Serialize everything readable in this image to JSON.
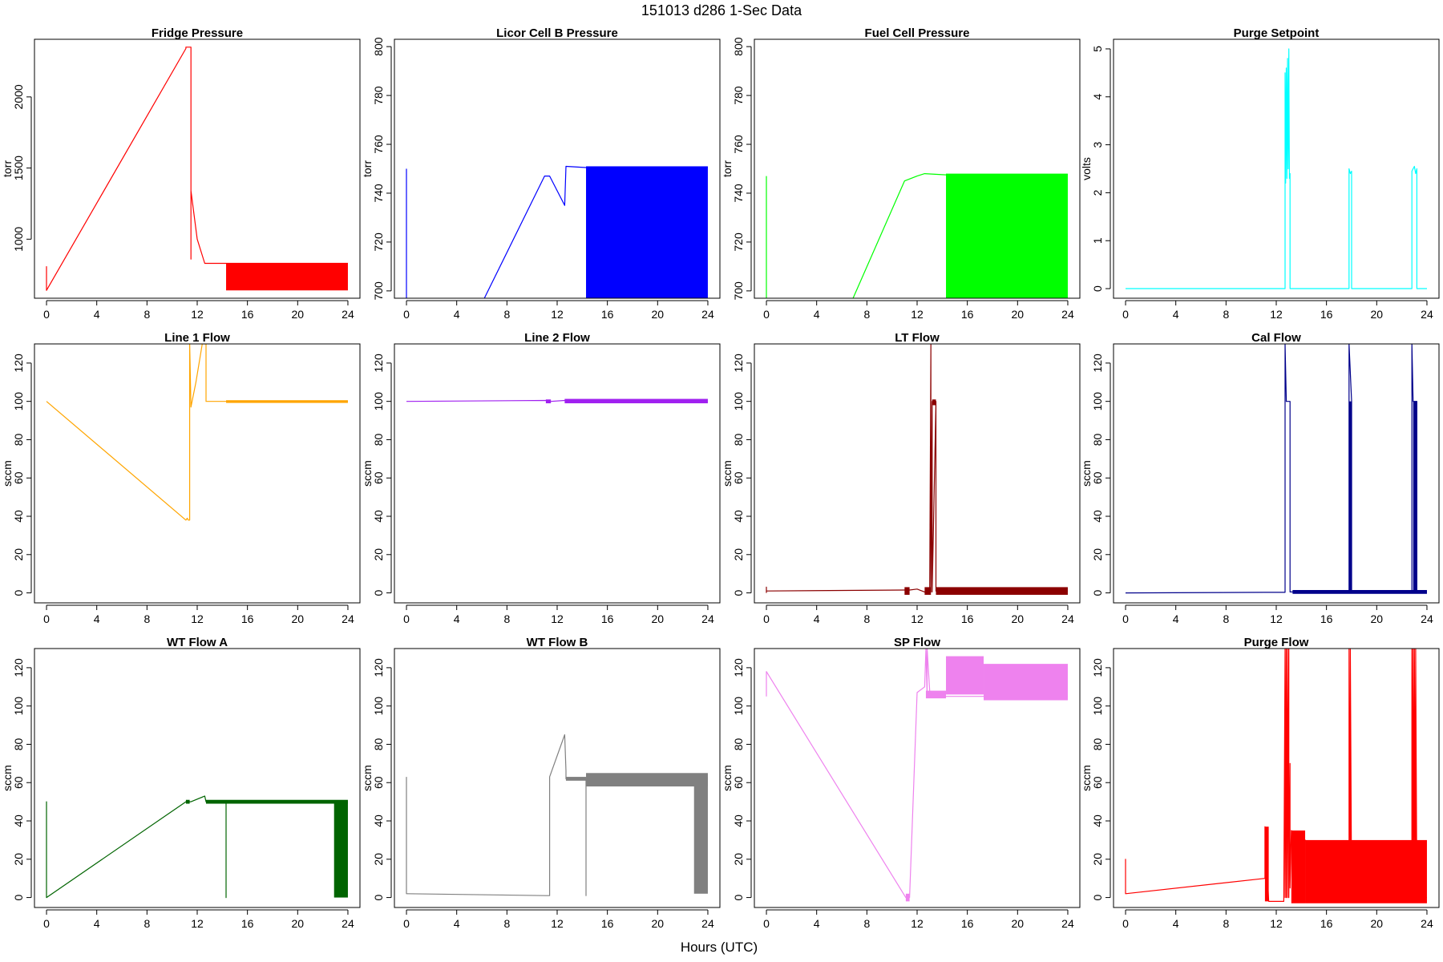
{
  "figure": {
    "title": "151013   d286   1-Sec Data",
    "xlabel": "Hours (UTC)"
  },
  "chart_data": [
    {
      "type": "line",
      "title": "Fridge Pressure",
      "ylabel": "torr",
      "color": "#ff0000",
      "xlim": [
        -0.96,
        24.96
      ],
      "ylim": [
        585,
        2405
      ],
      "xticks": [
        0,
        4,
        8,
        12,
        16,
        20,
        24
      ],
      "yticks": [
        1000,
        1500,
        2000
      ],
      "series": [
        {
          "x": [
            0,
            0,
            11.1,
            11.1,
            11.5,
            11.5,
            11.5,
            11.5,
            12.0,
            12.6,
            14.3
          ],
          "y": [
            810,
            640,
            2340,
            2350,
            2350,
            860,
            1340,
            1340,
            1000,
            830,
            830
          ]
        },
        {
          "x": [
            14.3,
            24
          ],
          "y": [
            830,
            830
          ]
        }
      ],
      "bands": [
        {
          "x0": 14.3,
          "x1": 24,
          "y0": 640,
          "y1": 830
        }
      ]
    },
    {
      "type": "line",
      "title": "Licor Cell B Pressure",
      "ylabel": "torr",
      "color": "#0000ff",
      "xlim": [
        -0.96,
        24.96
      ],
      "ylim": [
        697,
        803
      ],
      "xticks": [
        0,
        4,
        8,
        12,
        16,
        20,
        24
      ],
      "yticks": [
        700,
        720,
        740,
        760,
        780,
        800
      ],
      "series": [
        {
          "x": [
            0,
            0
          ],
          "y": [
            697,
            750
          ]
        },
        {
          "x": [
            6.2,
            11.0,
            11.4,
            12.6,
            12.7,
            12.7,
            14.3,
            24
          ],
          "y": [
            697,
            747,
            747,
            735,
            751,
            751,
            750.5,
            750.5
          ]
        }
      ],
      "bands": [
        {
          "x0": 14.3,
          "x1": 24,
          "y0": 697,
          "y1": 751
        }
      ]
    },
    {
      "type": "line",
      "title": "Fuel Cell Pressure",
      "ylabel": "torr",
      "color": "#00ff00",
      "xlim": [
        -0.96,
        24.96
      ],
      "ylim": [
        697,
        803
      ],
      "xticks": [
        0,
        4,
        8,
        12,
        16,
        20,
        24
      ],
      "yticks": [
        700,
        720,
        740,
        760,
        780,
        800
      ],
      "series": [
        {
          "x": [
            0,
            0
          ],
          "y": [
            697,
            747
          ]
        },
        {
          "x": [
            6.9,
            11.0,
            12.0,
            12.6,
            14.3,
            24
          ],
          "y": [
            697,
            745,
            747,
            748,
            747.5,
            747.5
          ]
        }
      ],
      "bands": [
        {
          "x0": 14.3,
          "x1": 24,
          "y0": 697,
          "y1": 748
        }
      ]
    },
    {
      "type": "line",
      "title": "Purge Setpoint",
      "ylabel": "volts",
      "color": "#00ffff",
      "xlim": [
        -0.96,
        24.96
      ],
      "ylim": [
        -0.2,
        5.2
      ],
      "xticks": [
        0,
        4,
        8,
        12,
        16,
        20,
        24
      ],
      "yticks": [
        0,
        1,
        2,
        3,
        4,
        5
      ],
      "series": [
        {
          "x": [
            0,
            12.7,
            12.7,
            12.75,
            12.8,
            12.85,
            12.9,
            12.95,
            13.0,
            13.05,
            13.1,
            13.1,
            17.8,
            17.8,
            17.9,
            18.0,
            18.0,
            22.8,
            22.8,
            22.9,
            23.0,
            23.1,
            23.2,
            23.2,
            24
          ],
          "y": [
            0,
            0,
            4.5,
            2.2,
            4.6,
            2.3,
            4.8,
            2.5,
            5.0,
            2.3,
            2.4,
            0,
            0,
            2.5,
            2.4,
            2.45,
            0,
            0,
            2.45,
            2.5,
            2.55,
            2.4,
            2.5,
            0,
            0
          ]
        }
      ],
      "bands": []
    },
    {
      "type": "line",
      "title": "Line 1 Flow",
      "ylabel": "sccm",
      "color": "#ffa500",
      "xlim": [
        -0.96,
        24.96
      ],
      "ylim": [
        -5.2,
        130
      ],
      "xticks": [
        0,
        4,
        8,
        12,
        16,
        20,
        24
      ],
      "yticks": [
        0,
        20,
        40,
        60,
        80,
        100,
        120
      ],
      "series": [
        {
          "x": [
            0,
            11.1,
            11.2,
            11.3,
            11.4,
            11.4,
            11.5,
            11.9,
            12.4,
            12.6,
            12.7,
            12.7,
            24
          ],
          "y": [
            100,
            38,
            39,
            38,
            38,
            130,
            97,
            110,
            130,
            130,
            130,
            100,
            100
          ]
        }
      ],
      "bands": [
        {
          "x0": 14.3,
          "x1": 24,
          "y0": 99.2,
          "y1": 100.6
        }
      ]
    },
    {
      "type": "line",
      "title": "Line 2 Flow",
      "ylabel": "sccm",
      "color": "#a020f0",
      "xlim": [
        -0.96,
        24.96
      ],
      "ylim": [
        -5.2,
        130
      ],
      "xticks": [
        0,
        4,
        8,
        12,
        16,
        20,
        24
      ],
      "yticks": [
        0,
        20,
        40,
        60,
        80,
        100,
        120
      ],
      "series": [
        {
          "x": [
            0,
            11.1,
            11.5,
            12.6,
            14.3,
            24
          ],
          "y": [
            100,
            100.5,
            100,
            100.5,
            100,
            100
          ]
        }
      ],
      "bands": [
        {
          "x0": 11.1,
          "x1": 11.5,
          "y0": 99,
          "y1": 101
        },
        {
          "x0": 12.6,
          "x1": 24,
          "y0": 99,
          "y1": 101.3
        }
      ]
    },
    {
      "type": "line",
      "title": "LT Flow",
      "ylabel": "sccm",
      "color": "#8b0000",
      "xlim": [
        -0.96,
        24.96
      ],
      "ylim": [
        -5.2,
        130
      ],
      "xticks": [
        0,
        4,
        8,
        12,
        16,
        20,
        24
      ],
      "yticks": [
        0,
        20,
        40,
        60,
        80,
        100,
        120
      ],
      "series": [
        {
          "x": [
            0,
            0,
            0,
            11.0,
            11.4,
            12.0,
            12.6,
            13.0,
            13.1,
            13.1,
            13.2,
            13.2,
            13.5,
            13.5,
            24
          ],
          "y": [
            0,
            3,
            1,
            1.5,
            1.5,
            2,
            0.5,
            0.5,
            130,
            0.5,
            100,
            0.5,
            100,
            1,
            1
          ]
        }
      ],
      "bands": [
        {
          "x0": 11.0,
          "x1": 11.4,
          "y0": -1,
          "y1": 3
        },
        {
          "x0": 12.6,
          "x1": 13.1,
          "y0": -1,
          "y1": 3
        },
        {
          "x0": 13.2,
          "x1": 13.5,
          "y0": 98,
          "y1": 101
        },
        {
          "x0": 13.5,
          "x1": 24,
          "y0": -1,
          "y1": 3
        }
      ]
    },
    {
      "type": "line",
      "title": "Cal Flow",
      "ylabel": "sccm",
      "color": "#00008b",
      "xlim": [
        -0.96,
        24.96
      ],
      "ylim": [
        -5.2,
        130
      ],
      "xticks": [
        0,
        4,
        8,
        12,
        16,
        20,
        24
      ],
      "yticks": [
        0,
        20,
        40,
        60,
        80,
        100,
        120
      ],
      "series": [
        {
          "x": [
            0,
            11.1,
            12.7,
            12.7,
            12.8,
            12.8,
            13.1,
            13.1,
            17.8,
            17.8,
            18.0,
            18.0,
            22.8,
            22.8,
            22.9,
            22.9,
            23.2,
            23.2,
            24
          ],
          "y": [
            0,
            0.3,
            0.3,
            130,
            101,
            100,
            100,
            0.5,
            0.5,
            130,
            100,
            0.5,
            0.5,
            130,
            100,
            100,
            100,
            0.5,
            0.5
          ]
        }
      ],
      "bands": [
        {
          "x0": 13.3,
          "x1": 24,
          "y0": -0.5,
          "y1": 1.5
        },
        {
          "x0": 17.8,
          "x1": 18.0,
          "y0": 0,
          "y1": 100
        },
        {
          "x0": 22.9,
          "x1": 23.2,
          "y0": 0,
          "y1": 100
        }
      ]
    },
    {
      "type": "line",
      "title": "WT Flow A",
      "ylabel": "sccm",
      "color": "#006400",
      "xlim": [
        -0.96,
        24.96
      ],
      "ylim": [
        -5.2,
        130
      ],
      "xticks": [
        0,
        4,
        8,
        12,
        16,
        20,
        24
      ],
      "yticks": [
        0,
        20,
        40,
        60,
        80,
        100,
        120
      ],
      "series": [
        {
          "x": [
            0,
            0,
            0,
            11.1,
            11.5,
            12.6,
            12.7,
            14.3,
            14.3,
            14.3,
            24
          ],
          "y": [
            0,
            50,
            0,
            50,
            50,
            53,
            50,
            50,
            0,
            50,
            50
          ]
        }
      ],
      "bands": [
        {
          "x0": 11.1,
          "x1": 11.4,
          "y0": 49,
          "y1": 51
        },
        {
          "x0": 12.7,
          "x1": 24,
          "y0": 49,
          "y1": 51
        },
        {
          "x0": 22.9,
          "x1": 24,
          "y0": 0,
          "y1": 50
        }
      ]
    },
    {
      "type": "line",
      "title": "WT Flow B",
      "ylabel": "sccm",
      "color": "#808080",
      "xlim": [
        -0.96,
        24.96
      ],
      "ylim": [
        -5.2,
        130
      ],
      "xticks": [
        0,
        4,
        8,
        12,
        16,
        20,
        24
      ],
      "yticks": [
        0,
        20,
        40,
        60,
        80,
        100,
        120
      ],
      "series": [
        {
          "x": [
            0,
            0,
            0,
            11.1,
            11.4,
            11.4,
            12.6,
            12.7,
            12.7,
            14.3,
            14.3,
            14.3,
            24
          ],
          "y": [
            63,
            2,
            2,
            1,
            1,
            63,
            85,
            66,
            62,
            62,
            1,
            62,
            62
          ]
        }
      ],
      "bands": [
        {
          "x0": 12.7,
          "x1": 14.3,
          "y0": 61,
          "y1": 63
        },
        {
          "x0": 14.3,
          "x1": 24,
          "y0": 58,
          "y1": 65
        },
        {
          "x0": 22.9,
          "x1": 24,
          "y0": 2,
          "y1": 63
        }
      ]
    },
    {
      "type": "line",
      "title": "SP Flow",
      "ylabel": "sccm",
      "color": "#ee82ee",
      "xlim": [
        -0.96,
        24.96
      ],
      "ylim": [
        -5.2,
        130
      ],
      "xticks": [
        0,
        4,
        8,
        12,
        16,
        20,
        24
      ],
      "yticks": [
        0,
        20,
        40,
        60,
        80,
        100,
        120
      ],
      "series": [
        {
          "x": [
            0,
            0,
            0,
            11.1,
            11.4,
            11.4,
            12.0,
            12.6,
            12.7,
            12.8,
            12.8,
            13.0,
            13.1,
            14.3,
            24
          ],
          "y": [
            105,
            118,
            118,
            0,
            0,
            0,
            107,
            110,
            130,
            105,
            130,
            108,
            106,
            105,
            105
          ]
        }
      ],
      "bands": [
        {
          "x0": 11.1,
          "x1": 11.4,
          "y0": -2,
          "y1": 2
        },
        {
          "x0": 12.7,
          "x1": 14.3,
          "y0": 104,
          "y1": 108
        },
        {
          "x0": 14.3,
          "x1": 17.3,
          "y0": 106,
          "y1": 126
        },
        {
          "x0": 17.3,
          "x1": 24,
          "y0": 103,
          "y1": 122
        }
      ]
    },
    {
      "type": "line",
      "title": "Purge Flow",
      "ylabel": "sccm",
      "color": "#ff0000",
      "xlim": [
        -0.96,
        24.96
      ],
      "ylim": [
        -5.2,
        130
      ],
      "xticks": [
        0,
        4,
        8,
        12,
        16,
        20,
        24
      ],
      "yticks": [
        0,
        20,
        40,
        60,
        80,
        100,
        120
      ],
      "series": [
        {
          "x": [
            0,
            0,
            0,
            11.1,
            11.1,
            11.4,
            11.4,
            12.6,
            12.7,
            12.7,
            12.8,
            12.8,
            12.9,
            12.9,
            13.0,
            13.0,
            13.1,
            13.1,
            13.2,
            14.3,
            17.8,
            17.8,
            17.9,
            17.9,
            18.0,
            22.8,
            22.8,
            22.9,
            22.9,
            23.0,
            23.0,
            23.1,
            23.1,
            23.2,
            24
          ],
          "y": [
            2,
            20,
            2,
            10,
            37,
            -2,
            -2,
            -2,
            130,
            0,
            130,
            0,
            130,
            0,
            130,
            0,
            70,
            5,
            35,
            30,
            0,
            130,
            0,
            130,
            0,
            0,
            130,
            0,
            130,
            0,
            130,
            0,
            130,
            0,
            0
          ]
        }
      ],
      "bands": [
        {
          "x0": 11.1,
          "x1": 11.4,
          "y0": -2,
          "y1": 37
        },
        {
          "x0": 13.2,
          "x1": 14.3,
          "y0": -3,
          "y1": 35
        },
        {
          "x0": 14.3,
          "x1": 24,
          "y0": -3,
          "y1": 30
        }
      ]
    }
  ]
}
